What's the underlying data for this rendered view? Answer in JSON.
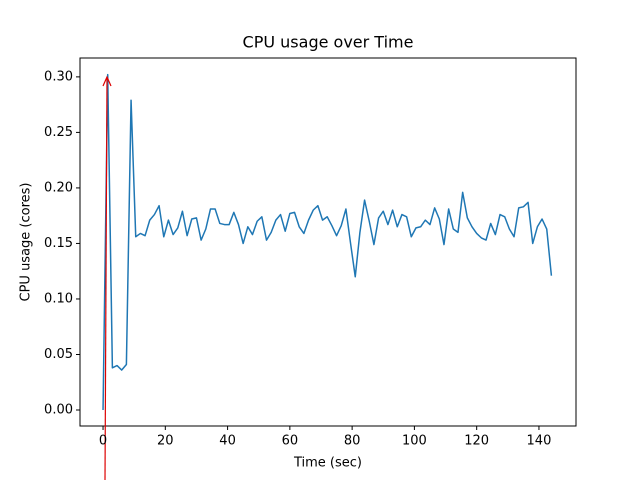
{
  "chart_data": {
    "type": "line",
    "title": "CPU usage over Time",
    "x_label": "Time (sec)",
    "y_label": "CPU usage (cores)",
    "color": "#1f77b4",
    "x": [
      0,
      1.5,
      3,
      4.5,
      6,
      7.5,
      9,
      10.5,
      12,
      13.5,
      15,
      16.5,
      18,
      19.5,
      21,
      22.5,
      24,
      25.5,
      27,
      28.5,
      30,
      31.5,
      33,
      34.5,
      36,
      37.5,
      39,
      40.5,
      42,
      43.5,
      45,
      46.5,
      48,
      49.5,
      51,
      52.5,
      54,
      55.5,
      57,
      58.5,
      60,
      61.5,
      63,
      64.5,
      66,
      67.5,
      69,
      70.5,
      72,
      73.5,
      75,
      76.5,
      78,
      79.5,
      81,
      82.5,
      84,
      85.5,
      87,
      88.5,
      90,
      91.5,
      93,
      94.5,
      96,
      97.5,
      99,
      100.5,
      102,
      103.5,
      105,
      106.5,
      108,
      109.5,
      111,
      112.5,
      114,
      115.5,
      117,
      118.5,
      120,
      121.5,
      123,
      124.5,
      126,
      127.5,
      129,
      130.5,
      132,
      133.5,
      135,
      136.5,
      138,
      139.5,
      141,
      142.5,
      144
    ],
    "values": [
      0.0,
      0.302,
      0.038,
      0.04,
      0.036,
      0.041,
      0.279,
      0.156,
      0.159,
      0.157,
      0.171,
      0.176,
      0.184,
      0.156,
      0.171,
      0.158,
      0.164,
      0.179,
      0.157,
      0.172,
      0.173,
      0.153,
      0.163,
      0.181,
      0.181,
      0.168,
      0.167,
      0.167,
      0.178,
      0.167,
      0.15,
      0.165,
      0.158,
      0.17,
      0.174,
      0.153,
      0.16,
      0.171,
      0.176,
      0.161,
      0.177,
      0.178,
      0.165,
      0.159,
      0.171,
      0.18,
      0.184,
      0.171,
      0.174,
      0.166,
      0.157,
      0.166,
      0.181,
      0.15,
      0.12,
      0.16,
      0.189,
      0.17,
      0.149,
      0.173,
      0.179,
      0.167,
      0.18,
      0.165,
      0.176,
      0.174,
      0.156,
      0.164,
      0.165,
      0.171,
      0.167,
      0.182,
      0.172,
      0.149,
      0.181,
      0.163,
      0.16,
      0.196,
      0.173,
      0.165,
      0.159,
      0.155,
      0.153,
      0.168,
      0.158,
      0.176,
      0.174,
      0.163,
      0.156,
      0.182,
      0.183,
      0.187,
      0.15,
      0.165,
      0.172,
      0.163,
      0.121
    ],
    "xlim": [
      -7.4,
      151.9
    ],
    "ylim": [
      -0.0144,
      0.317
    ],
    "xticks": [
      0,
      20,
      40,
      60,
      80,
      100,
      120,
      140
    ],
    "yticks": [
      {
        "value": 0,
        "label": "0.00"
      },
      0.05,
      {
        "value": 0.1,
        "label": "0.10"
      },
      0.15,
      {
        "value": 0.2,
        "label": "0.20"
      },
      0.25,
      {
        "value": 0.3,
        "label": "0.30"
      }
    ]
  }
}
